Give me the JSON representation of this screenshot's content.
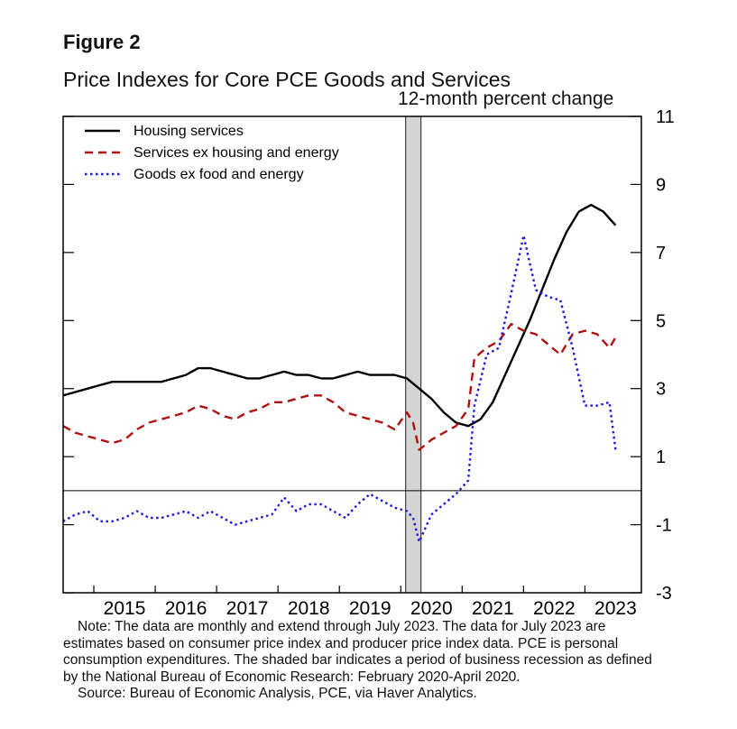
{
  "figure_label": "Figure 2",
  "chart_data": {
    "type": "line",
    "title": "Price Indexes for Core PCE Goods and Services",
    "units_label": "12-month percent change",
    "ylim": [
      -3,
      11
    ],
    "y_ticks": [
      -3,
      -1,
      1,
      3,
      5,
      7,
      9,
      11
    ],
    "x_tick_labels": [
      "2015",
      "2016",
      "2017",
      "2018",
      "2019",
      "2020",
      "2021",
      "2022",
      "2023"
    ],
    "xlim": [
      2014.5,
      2023.92
    ],
    "zero_line": 0,
    "legend_position": "top-left",
    "recession": {
      "start": 2020.08,
      "end": 2020.33
    },
    "series": [
      {
        "name": "Housing services",
        "style": "solid",
        "color": "#000000",
        "x": [
          2014.5,
          2014.7,
          2014.9,
          2015.1,
          2015.3,
          2015.5,
          2015.7,
          2015.9,
          2016.1,
          2016.3,
          2016.5,
          2016.7,
          2016.9,
          2017.1,
          2017.3,
          2017.5,
          2017.7,
          2017.9,
          2018.1,
          2018.3,
          2018.5,
          2018.7,
          2018.9,
          2019.1,
          2019.3,
          2019.5,
          2019.7,
          2019.9,
          2020.1,
          2020.3,
          2020.5,
          2020.7,
          2020.9,
          2021.1,
          2021.3,
          2021.5,
          2021.7,
          2021.9,
          2022.1,
          2022.3,
          2022.5,
          2022.7,
          2022.9,
          2023.1,
          2023.3,
          2023.5
        ],
        "values": [
          2.8,
          2.9,
          3.0,
          3.1,
          3.2,
          3.2,
          3.2,
          3.2,
          3.2,
          3.3,
          3.4,
          3.6,
          3.6,
          3.5,
          3.4,
          3.3,
          3.3,
          3.4,
          3.5,
          3.4,
          3.4,
          3.3,
          3.3,
          3.4,
          3.5,
          3.4,
          3.4,
          3.4,
          3.3,
          3.0,
          2.7,
          2.3,
          2.0,
          1.9,
          2.1,
          2.6,
          3.4,
          4.2,
          5.0,
          5.9,
          6.8,
          7.6,
          8.2,
          8.4,
          8.2,
          7.8
        ]
      },
      {
        "name": "Services ex housing and energy",
        "style": "dashed",
        "color": "#b01010",
        "x": [
          2014.5,
          2014.7,
          2014.9,
          2015.1,
          2015.3,
          2015.5,
          2015.7,
          2015.9,
          2016.1,
          2016.3,
          2016.5,
          2016.7,
          2016.9,
          2017.1,
          2017.3,
          2017.5,
          2017.7,
          2017.9,
          2018.1,
          2018.3,
          2018.5,
          2018.7,
          2018.9,
          2019.1,
          2019.3,
          2019.5,
          2019.7,
          2019.9,
          2020.1,
          2020.2,
          2020.3,
          2020.5,
          2020.7,
          2020.9,
          2021.1,
          2021.2,
          2021.4,
          2021.6,
          2021.8,
          2022.0,
          2022.2,
          2022.4,
          2022.6,
          2022.8,
          2023.0,
          2023.2,
          2023.4,
          2023.5
        ],
        "values": [
          1.9,
          1.7,
          1.6,
          1.5,
          1.4,
          1.5,
          1.8,
          2.0,
          2.1,
          2.2,
          2.3,
          2.5,
          2.4,
          2.2,
          2.1,
          2.3,
          2.4,
          2.6,
          2.6,
          2.7,
          2.8,
          2.8,
          2.6,
          2.3,
          2.2,
          2.1,
          2.0,
          1.8,
          2.3,
          2.0,
          1.2,
          1.5,
          1.7,
          1.9,
          2.4,
          3.9,
          4.2,
          4.4,
          4.9,
          4.7,
          4.6,
          4.3,
          4.0,
          4.6,
          4.7,
          4.6,
          4.2,
          4.5
        ]
      },
      {
        "name": "Goods ex food and energy",
        "style": "dotted",
        "color": "#1a1adb",
        "x": [
          2014.5,
          2014.7,
          2014.9,
          2015.1,
          2015.3,
          2015.5,
          2015.7,
          2015.9,
          2016.1,
          2016.3,
          2016.5,
          2016.7,
          2016.9,
          2017.1,
          2017.3,
          2017.5,
          2017.7,
          2017.9,
          2018.1,
          2018.3,
          2018.5,
          2018.7,
          2018.9,
          2019.1,
          2019.3,
          2019.5,
          2019.7,
          2019.9,
          2020.1,
          2020.2,
          2020.3,
          2020.5,
          2020.7,
          2020.9,
          2021.1,
          2021.2,
          2021.4,
          2021.6,
          2021.8,
          2022.0,
          2022.2,
          2022.4,
          2022.6,
          2022.8,
          2023.0,
          2023.2,
          2023.4,
          2023.5
        ],
        "values": [
          -0.9,
          -0.7,
          -0.6,
          -0.9,
          -0.9,
          -0.8,
          -0.6,
          -0.8,
          -0.8,
          -0.7,
          -0.6,
          -0.8,
          -0.6,
          -0.8,
          -1.0,
          -0.9,
          -0.8,
          -0.7,
          -0.2,
          -0.6,
          -0.4,
          -0.4,
          -0.6,
          -0.8,
          -0.4,
          -0.1,
          -0.3,
          -0.5,
          -0.6,
          -0.8,
          -1.5,
          -0.7,
          -0.4,
          -0.1,
          0.3,
          2.5,
          4.0,
          4.2,
          5.8,
          7.5,
          5.9,
          5.7,
          5.6,
          4.2,
          2.5,
          2.5,
          2.6,
          1.2
        ]
      }
    ]
  },
  "note": {
    "main": "Note: The data are monthly and extend through July 2023. The data for July 2023 are estimates based on consumer price index and producer price index data. PCE is personal consumption expenditures. The shaded bar indicates a period of business recession as defined by the National Bureau of Economic Research: February 2020-April 2020.",
    "source": "Source: Bureau of Economic Analysis, PCE, via Haver Analytics."
  }
}
